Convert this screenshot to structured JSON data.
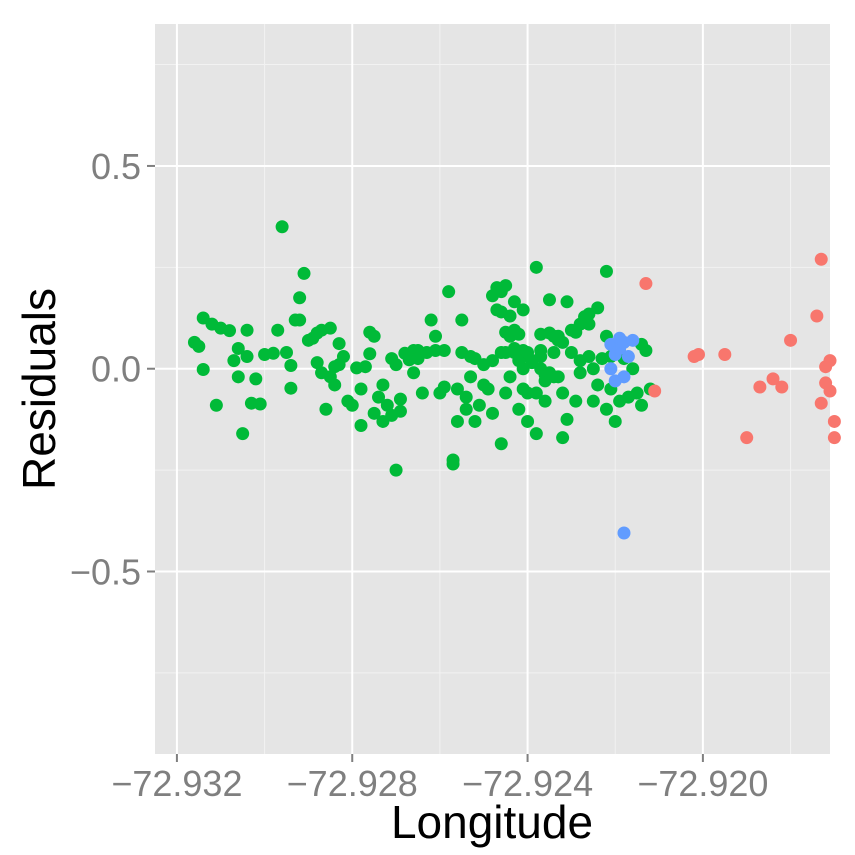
{
  "chart_data": {
    "type": "scatter",
    "xlabel": "Longitude",
    "ylabel": "Residuals",
    "xlim": [
      -72.9325,
      -72.9171
    ],
    "ylim": [
      -0.95,
      0.85
    ],
    "grid": true,
    "legend": "none",
    "x_ticks": [
      {
        "value": -72.932,
        "label": "−72.932"
      },
      {
        "value": -72.928,
        "label": "−72.928"
      },
      {
        "value": -72.924,
        "label": "−72.924"
      },
      {
        "value": -72.92,
        "label": "−72.920"
      }
    ],
    "y_ticks": [
      {
        "value": 0.5,
        "label": "0.5"
      },
      {
        "value": 0.0,
        "label": "0.0"
      },
      {
        "value": -0.5,
        "label": "−0.5"
      }
    ],
    "colors": {
      "panel": "#e5e5e5",
      "grid_major": "#ffffff",
      "grid_minor": "#f2f2f2",
      "tick_mark": "#7f7f7f"
    },
    "series": [
      {
        "color": "#00ba38",
        "points": [
          [
            -72.9316,
            0.065
          ],
          [
            -72.9315,
            0.055
          ],
          [
            -72.9314,
            0.125
          ],
          [
            -72.9314,
            -0.002
          ],
          [
            -72.9312,
            0.11
          ],
          [
            -72.9311,
            -0.09
          ],
          [
            -72.931,
            0.1
          ],
          [
            -72.9308,
            0.094
          ],
          [
            -72.9307,
            0.02
          ],
          [
            -72.9306,
            -0.02
          ],
          [
            -72.9306,
            0.05
          ],
          [
            -72.9305,
            -0.16
          ],
          [
            -72.9304,
            0.095
          ],
          [
            -72.9304,
            0.03
          ],
          [
            -72.9303,
            -0.085
          ],
          [
            -72.9302,
            -0.025
          ],
          [
            -72.9301,
            -0.087
          ],
          [
            -72.93,
            0.035
          ],
          [
            -72.9298,
            0.038
          ],
          [
            -72.9297,
            0.095
          ],
          [
            -72.9296,
            0.35
          ],
          [
            -72.9295,
            0.04
          ],
          [
            -72.9294,
            0.008
          ],
          [
            -72.9294,
            -0.048
          ],
          [
            -72.9293,
            0.12
          ],
          [
            -72.9292,
            0.175
          ],
          [
            -72.9292,
            0.12
          ],
          [
            -72.9291,
            0.235
          ],
          [
            -72.929,
            0.07
          ],
          [
            -72.9289,
            0.075
          ],
          [
            -72.9288,
            0.088
          ],
          [
            -72.9288,
            0.015
          ],
          [
            -72.9287,
            -0.01
          ],
          [
            -72.9287,
            0.095
          ],
          [
            -72.9286,
            -0.1
          ],
          [
            -72.9285,
            0.1
          ],
          [
            -72.9285,
            -0.02
          ],
          [
            -72.9284,
            0.005
          ],
          [
            -72.9284,
            -0.04
          ],
          [
            -72.9283,
            0.062
          ],
          [
            -72.9283,
            0.01
          ],
          [
            -72.9282,
            0.03
          ],
          [
            -72.9281,
            -0.08
          ],
          [
            -72.928,
            -0.09
          ],
          [
            -72.9279,
            0.002
          ],
          [
            -72.9278,
            -0.05
          ],
          [
            -72.9278,
            -0.14
          ],
          [
            -72.9277,
            0.005
          ],
          [
            -72.9276,
            0.09
          ],
          [
            -72.9276,
            0.037
          ],
          [
            -72.9275,
            0.08
          ],
          [
            -72.9275,
            -0.11
          ],
          [
            -72.9274,
            -0.07
          ],
          [
            -72.9273,
            -0.13
          ],
          [
            -72.9273,
            -0.04
          ],
          [
            -72.9272,
            -0.09
          ],
          [
            -72.9271,
            0.025
          ],
          [
            -72.9271,
            -0.115
          ],
          [
            -72.927,
            -0.25
          ],
          [
            -72.927,
            0.01
          ],
          [
            -72.9269,
            -0.105
          ],
          [
            -72.9269,
            -0.075
          ],
          [
            -72.9268,
            0.038
          ],
          [
            -72.9267,
            0.022
          ],
          [
            -72.9266,
            0.045
          ],
          [
            -72.9266,
            -0.01
          ],
          [
            -72.9265,
            0.045
          ],
          [
            -72.9265,
            0.025
          ],
          [
            -72.9264,
            -0.06
          ],
          [
            -72.9263,
            0.04
          ],
          [
            -72.9262,
            0.12
          ],
          [
            -72.9261,
            0.08
          ],
          [
            -72.9261,
            0.045
          ],
          [
            -72.926,
            -0.06
          ],
          [
            -72.9259,
            0.045
          ],
          [
            -72.9259,
            -0.045
          ],
          [
            -72.9258,
            0.19
          ],
          [
            -72.9257,
            -0.225
          ],
          [
            -72.9257,
            -0.235
          ],
          [
            -72.9256,
            -0.13
          ],
          [
            -72.9256,
            -0.05
          ],
          [
            -72.9255,
            0.12
          ],
          [
            -72.9255,
            0.04
          ],
          [
            -72.9254,
            -0.07
          ],
          [
            -72.9254,
            -0.1
          ],
          [
            -72.9253,
            0.03
          ],
          [
            -72.9253,
            -0.02
          ],
          [
            -72.9252,
            -0.13
          ],
          [
            -72.9252,
            0.025
          ],
          [
            -72.9251,
            -0.09
          ],
          [
            -72.925,
            -0.04
          ],
          [
            -72.925,
            0.01
          ],
          [
            -72.9249,
            -0.05
          ],
          [
            -72.9248,
            0.02
          ],
          [
            -72.9248,
            -0.11
          ],
          [
            -72.9247,
            0.145
          ],
          [
            -72.9246,
            -0.185
          ],
          [
            -72.9246,
            0.04
          ],
          [
            -72.9245,
            -0.06
          ],
          [
            -72.9245,
            0.04
          ],
          [
            -72.9244,
            -0.02
          ],
          [
            -72.9243,
            0.095
          ],
          [
            -72.9243,
            0.05
          ],
          [
            -72.9242,
            -0.1
          ],
          [
            -72.9241,
            0.045
          ],
          [
            -72.9241,
            0.0
          ],
          [
            -72.924,
            -0.13
          ],
          [
            -72.924,
            0.03
          ],
          [
            -72.9239,
            0.015
          ],
          [
            -72.9238,
            -0.16
          ],
          [
            -72.9238,
            -0.06
          ],
          [
            -72.9237,
            0.03
          ],
          [
            -72.9237,
            0.045
          ],
          [
            -72.9236,
            -0.03
          ],
          [
            -72.9236,
            -0.08
          ],
          [
            -72.9235,
            0.17
          ],
          [
            -72.9234,
            0.04
          ],
          [
            -72.9234,
            -0.02
          ],
          [
            -72.9233,
            0.08
          ],
          [
            -72.9232,
            -0.17
          ],
          [
            -72.9232,
            -0.06
          ],
          [
            -72.9231,
            0.165
          ],
          [
            -72.9231,
            -0.125
          ],
          [
            -72.923,
            0.04
          ],
          [
            -72.9229,
            -0.08
          ],
          [
            -72.9229,
            0.09
          ],
          [
            -72.9228,
            -0.01
          ],
          [
            -72.9228,
            0.02
          ],
          [
            -72.9227,
            0.128
          ],
          [
            -72.9226,
            0.03
          ],
          [
            -72.9226,
            0.11
          ],
          [
            -72.9225,
            -0.08
          ],
          [
            -72.9225,
            0.0
          ],
          [
            -72.9224,
            -0.04
          ],
          [
            -72.9223,
            0.025
          ],
          [
            -72.9222,
            0.08
          ],
          [
            -72.9222,
            -0.1
          ],
          [
            -72.9221,
            0.03
          ],
          [
            -72.9221,
            -0.05
          ],
          [
            -72.922,
            -0.13
          ],
          [
            -72.9219,
            0.04
          ],
          [
            -72.9219,
            -0.08
          ],
          [
            -72.9218,
            0.025
          ],
          [
            -72.9217,
            -0.07
          ],
          [
            -72.9216,
            0.0
          ],
          [
            -72.9215,
            -0.06
          ],
          [
            -72.9214,
            0.06
          ],
          [
            -72.9214,
            -0.09
          ],
          [
            -72.9213,
            0.045
          ],
          [
            -72.9212,
            -0.05
          ]
        ]
      },
      {
        "color": "#00ba38",
        "points": [
          [
            -72.9248,
            0.18
          ],
          [
            -72.9247,
            0.2
          ],
          [
            -72.9246,
            0.19
          ],
          [
            -72.9246,
            0.14
          ],
          [
            -72.9245,
            0.09
          ],
          [
            -72.9245,
            0.205
          ],
          [
            -72.9244,
            0.13
          ],
          [
            -72.9244,
            0.08
          ],
          [
            -72.9243,
            0.165
          ],
          [
            -72.9243,
            0.04
          ],
          [
            -72.9242,
            0.02
          ],
          [
            -72.9242,
            0.085
          ],
          [
            -72.9241,
            0.145
          ],
          [
            -72.9241,
            -0.05
          ],
          [
            -72.924,
            0.04
          ],
          [
            -72.924,
            -0.06
          ],
          [
            -72.9239,
            0.02
          ],
          [
            -72.9238,
            0.25
          ],
          [
            -72.9237,
            0.085
          ],
          [
            -72.9237,
            0.0
          ],
          [
            -72.9236,
            -0.015
          ],
          [
            -72.9235,
            0.088
          ],
          [
            -72.9235,
            -0.01
          ],
          [
            -72.9234,
            0.08
          ],
          [
            -72.9233,
            -0.02
          ],
          [
            -72.9233,
            0.07
          ],
          [
            -72.9232,
            0.065
          ],
          [
            -72.923,
            0.095
          ],
          [
            -72.9228,
            0.11
          ],
          [
            -72.9226,
            0.135
          ],
          [
            -72.9224,
            0.15
          ],
          [
            -72.9222,
            0.24
          ]
        ]
      },
      {
        "color": "#619cff",
        "points": [
          [
            -72.9221,
            0.06
          ],
          [
            -72.9221,
            0.0
          ],
          [
            -72.922,
            0.035
          ],
          [
            -72.922,
            -0.03
          ],
          [
            -72.9219,
            0.075
          ],
          [
            -72.9219,
            0.05
          ],
          [
            -72.9218,
            0.065
          ],
          [
            -72.9218,
            -0.02
          ],
          [
            -72.9218,
            -0.405
          ],
          [
            -72.9217,
            0.03
          ],
          [
            -72.9216,
            0.07
          ]
        ]
      },
      {
        "color": "#f8766d",
        "points": [
          [
            -72.9213,
            0.21
          ],
          [
            -72.9211,
            -0.055
          ],
          [
            -72.9202,
            0.03
          ],
          [
            -72.9201,
            0.035
          ],
          [
            -72.9195,
            0.035
          ],
          [
            -72.919,
            -0.17
          ],
          [
            -72.9187,
            -0.045
          ],
          [
            -72.9184,
            -0.025
          ],
          [
            -72.9182,
            -0.045
          ],
          [
            -72.918,
            0.07
          ],
          [
            -72.9173,
            0.27
          ],
          [
            -72.9174,
            0.13
          ],
          [
            -72.9173,
            -0.085
          ],
          [
            -72.9172,
            -0.035
          ],
          [
            -72.9172,
            0.005
          ],
          [
            -72.9171,
            0.02
          ],
          [
            -72.9171,
            -0.055
          ],
          [
            -72.917,
            -0.13
          ],
          [
            -72.917,
            -0.17
          ]
        ]
      }
    ]
  }
}
